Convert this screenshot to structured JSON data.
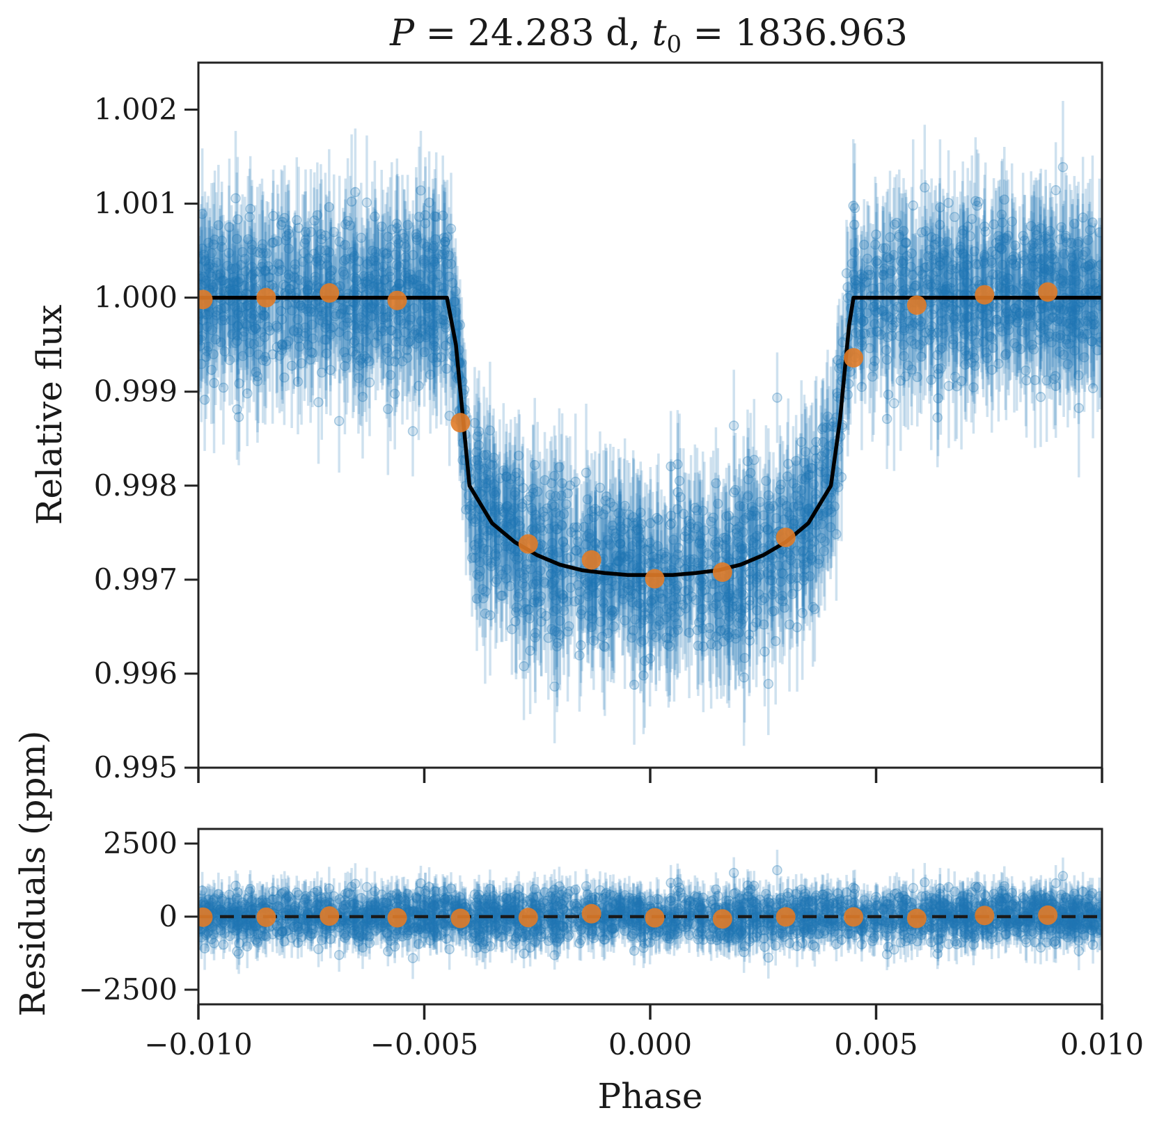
{
  "chart_data": [
    {
      "type": "scatter",
      "panel": "top",
      "title_parts": {
        "P_symbol": "P",
        "P_rest": " = 24.283 d, ",
        "t_symbol": "t",
        "t_sub": "0",
        "t_rest": " = 1836.963"
      },
      "ylabel": "Relative flux",
      "xlim": [
        -0.01,
        0.01
      ],
      "ylim": [
        0.995,
        1.0025
      ],
      "yticks": [
        0.995,
        0.996,
        0.997,
        0.998,
        0.999,
        1.0,
        1.001,
        1.002
      ],
      "ytick_labels": [
        "0.995",
        "0.996",
        "0.997",
        "0.998",
        "0.999",
        "1.000",
        "1.001",
        "1.002"
      ],
      "xticks": [
        -0.01,
        -0.005,
        0.0,
        0.005,
        0.01
      ],
      "colors": {
        "data": "#1f77b4",
        "binned": "#e07b28",
        "model": "#000000"
      },
      "model": {
        "description": "transit model",
        "phase": [
          -0.01,
          -0.0045,
          -0.0043,
          -0.0041,
          -0.004,
          -0.0035,
          -0.003,
          -0.0025,
          -0.002,
          -0.0015,
          -0.001,
          -0.0005,
          0.0,
          0.0005,
          0.001,
          0.0015,
          0.002,
          0.0025,
          0.003,
          0.0035,
          0.004,
          0.0042,
          0.0044,
          0.0045,
          0.01
        ],
        "flux": [
          1.0,
          1.0,
          0.9995,
          0.9985,
          0.998,
          0.9976,
          0.9974,
          0.99726,
          0.99716,
          0.9971,
          0.99707,
          0.99705,
          0.99705,
          0.99705,
          0.99707,
          0.9971,
          0.99716,
          0.99726,
          0.9974,
          0.9976,
          0.998,
          0.9987,
          0.9997,
          1.0,
          1.0
        ]
      },
      "binned": {
        "phase": [
          -0.0099,
          -0.0085,
          -0.0071,
          -0.0056,
          -0.0042,
          -0.0027,
          -0.0013,
          0.0001,
          0.0016,
          0.003,
          0.0045,
          0.0059,
          0.0074,
          0.0088
        ],
        "flux": [
          0.99998,
          1.0,
          1.00005,
          0.99997,
          0.99867,
          0.99738,
          0.99721,
          0.99701,
          0.99708,
          0.99745,
          0.99936,
          0.99992,
          1.00003,
          1.00006
        ]
      },
      "raw_scatter": {
        "n_points": 2600,
        "in_transit_depth": 0.00295,
        "point_sigma": 0.00042,
        "errorbar_halfwidth": 0.0006
      }
    },
    {
      "type": "scatter",
      "panel": "bottom",
      "ylabel": "Residuals (ppm)",
      "xlabel": "Phase",
      "xlim": [
        -0.01,
        0.01
      ],
      "ylim": [
        -3000,
        3000
      ],
      "yticks": [
        -2500,
        0,
        2500
      ],
      "ytick_labels": [
        "−2500",
        "0",
        "2500"
      ],
      "xticks": [
        -0.01,
        -0.005,
        0.0,
        0.005,
        0.01
      ],
      "xtick_labels": [
        "−0.010",
        "−0.005",
        "0.000",
        "0.005",
        "0.010"
      ],
      "zero_line": "dashed",
      "binned": {
        "phase": [
          -0.0099,
          -0.0085,
          -0.0071,
          -0.0056,
          -0.0042,
          -0.0027,
          -0.0013,
          0.0001,
          0.0016,
          0.003,
          0.0045,
          0.0059,
          0.0074,
          0.0088
        ],
        "residual": [
          -20,
          -20,
          20,
          -40,
          -60,
          -30,
          100,
          -40,
          -80,
          -10,
          -10,
          -60,
          40,
          50
        ]
      }
    }
  ]
}
